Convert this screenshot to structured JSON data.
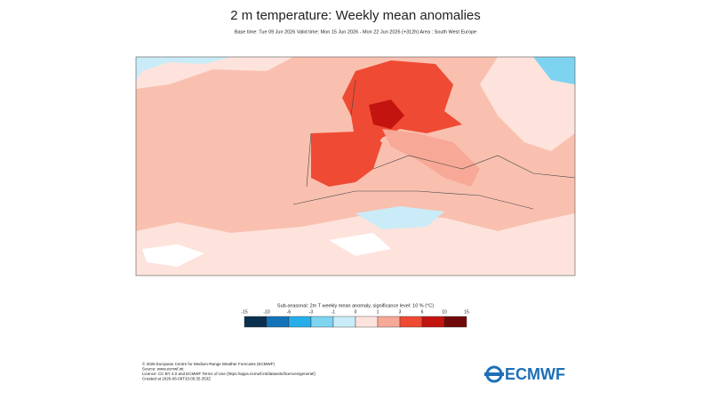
{
  "header": {
    "title": "2 m temperature: Weekly mean anomalies",
    "subtitle": "Base time: Tue 09 Jun 2026 Valid time: Mon 15 Jun 2026 - Mon 22 Jun 2026 (+312h) Area : South West Europe"
  },
  "legend": {
    "title": "Sub-seasonal: 2m T weekly mean anomaly, significance level: 10 % (°C)",
    "ticks": [
      -15,
      -10,
      -6,
      -3,
      -1,
      0,
      1,
      3,
      6,
      10,
      15
    ],
    "colors": [
      "#0b2f4e",
      "#1473b8",
      "#27aee8",
      "#7ed3f0",
      "#c9ecf8",
      "#fde3dc",
      "#f7a896",
      "#ef4a33",
      "#c3140f",
      "#6e0a0a"
    ]
  },
  "footer": {
    "lines": [
      "© 2026 European Centre for Medium-Range Weather Forecasts (ECMWF)",
      "Source: www.ecmwf.int",
      "Licence: CC BY 4.0 and ECMWF Terms of Use (https://apps.ecmwf.int/datasets/licences/general/)",
      "Created at 2026-06-09T20:05:35.353Z"
    ],
    "logo": "ECMWF"
  }
}
